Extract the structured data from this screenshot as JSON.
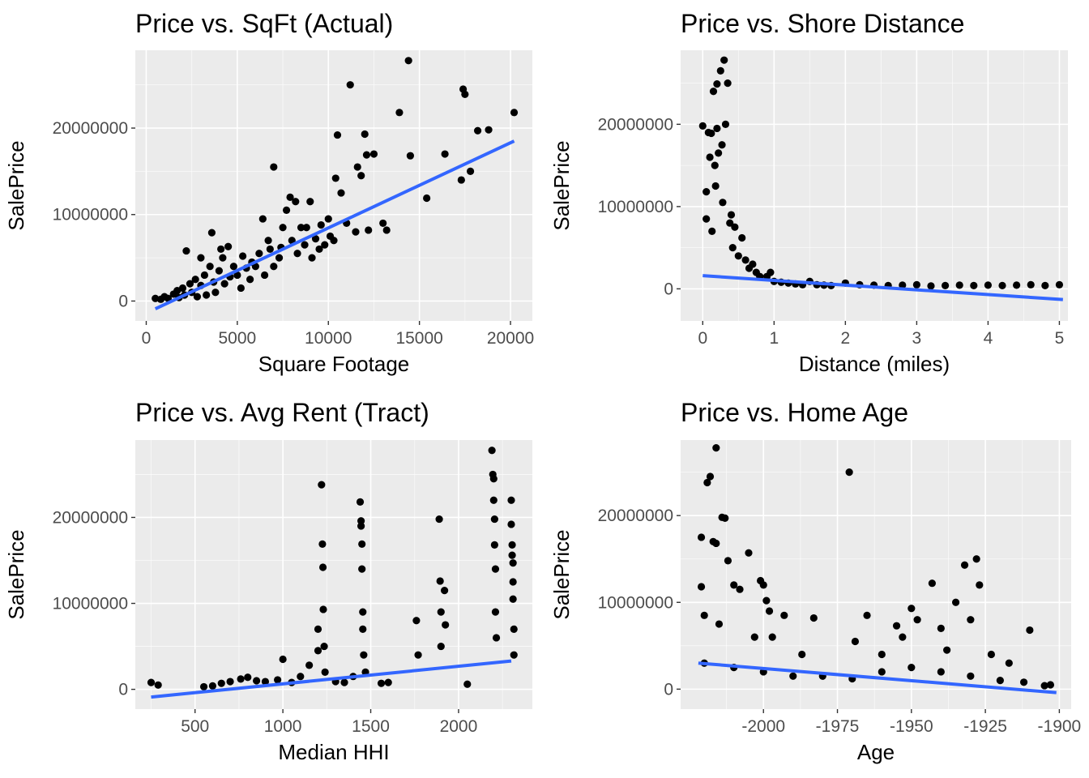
{
  "colors": {
    "panel_bg": "#ebebeb",
    "grid_major": "#ffffff",
    "point": "#000000",
    "smooth_line": "#3366ff",
    "tick_text": "#4d4d4d"
  },
  "chart_data": [
    {
      "type": "scatter",
      "title": "Price vs. SqFt (Actual)",
      "xlabel": "Square Footage",
      "ylabel": "SalePrice",
      "xlim": [
        -600,
        21200
      ],
      "ylim": [
        -2300000,
        29000000
      ],
      "xticks": [
        0,
        5000,
        10000,
        15000,
        20000
      ],
      "xtick_labels": [
        "0",
        "5000",
        "10000",
        "15000",
        "20000"
      ],
      "yticks": [
        0,
        10000000,
        20000000
      ],
      "ytick_labels": [
        "0",
        "10000000",
        "20000000"
      ],
      "grid": true,
      "trend_line": {
        "x": [
          500,
          20200
        ],
        "y": [
          -900000,
          18500000
        ]
      },
      "points": [
        [
          500,
          300000
        ],
        [
          800,
          200000
        ],
        [
          1000,
          500000
        ],
        [
          1200,
          300000
        ],
        [
          1500,
          800000
        ],
        [
          1700,
          1200000
        ],
        [
          1800,
          400000
        ],
        [
          2000,
          1500000
        ],
        [
          2100,
          700000
        ],
        [
          2200,
          5800000
        ],
        [
          2400,
          2000000
        ],
        [
          2500,
          1000000
        ],
        [
          2700,
          2500000
        ],
        [
          2800,
          500000
        ],
        [
          3000,
          1800000
        ],
        [
          3000,
          5000000
        ],
        [
          3200,
          3000000
        ],
        [
          3300,
          700000
        ],
        [
          3500,
          4000000
        ],
        [
          3600,
          7900000
        ],
        [
          3700,
          2200000
        ],
        [
          3800,
          1000000
        ],
        [
          4000,
          3500000
        ],
        [
          4100,
          6000000
        ],
        [
          4200,
          5000000
        ],
        [
          4300,
          2000000
        ],
        [
          4500,
          6300000
        ],
        [
          4600,
          2800000
        ],
        [
          4800,
          4000000
        ],
        [
          5000,
          3000000
        ],
        [
          5200,
          1500000
        ],
        [
          5300,
          5200000
        ],
        [
          5500,
          3800000
        ],
        [
          5700,
          2500000
        ],
        [
          5800,
          4500000
        ],
        [
          6000,
          4000000
        ],
        [
          6200,
          5500000
        ],
        [
          6400,
          9500000
        ],
        [
          6500,
          3000000
        ],
        [
          6700,
          7000000
        ],
        [
          6800,
          6000000
        ],
        [
          7000,
          15500000
        ],
        [
          7000,
          4000000
        ],
        [
          7300,
          5000000
        ],
        [
          7400,
          6200000
        ],
        [
          7500,
          8500000
        ],
        [
          7700,
          10500000
        ],
        [
          7900,
          12000000
        ],
        [
          8000,
          7000000
        ],
        [
          8200,
          11500000
        ],
        [
          8300,
          5500000
        ],
        [
          8500,
          8500000
        ],
        [
          8700,
          6500000
        ],
        [
          8800,
          8500000
        ],
        [
          9000,
          11500000
        ],
        [
          9100,
          5000000
        ],
        [
          9300,
          7200000
        ],
        [
          9500,
          6000000
        ],
        [
          9600,
          8800000
        ],
        [
          9800,
          6500000
        ],
        [
          10000,
          9500000
        ],
        [
          10100,
          7500000
        ],
        [
          10300,
          7000000
        ],
        [
          10400,
          14200000
        ],
        [
          10500,
          19200000
        ],
        [
          10700,
          12500000
        ],
        [
          11000,
          9000000
        ],
        [
          11200,
          25000000
        ],
        [
          11500,
          8000000
        ],
        [
          11600,
          15500000
        ],
        [
          11800,
          14500000
        ],
        [
          12000,
          19300000
        ],
        [
          12100,
          16900000
        ],
        [
          12200,
          8200000
        ],
        [
          12500,
          17000000
        ],
        [
          13000,
          9000000
        ],
        [
          13200,
          8200000
        ],
        [
          13900,
          21800000
        ],
        [
          14400,
          27800000
        ],
        [
          14500,
          16800000
        ],
        [
          15400,
          11900000
        ],
        [
          16400,
          17000000
        ],
        [
          17300,
          14000000
        ],
        [
          17400,
          24500000
        ],
        [
          17500,
          23900000
        ],
        [
          17800,
          15000000
        ],
        [
          18200,
          19700000
        ],
        [
          18800,
          19800000
        ],
        [
          20200,
          21800000
        ]
      ]
    },
    {
      "type": "scatter",
      "title": "Price vs. Shore Distance",
      "xlabel": "Distance (miles)",
      "ylabel": "SalePrice",
      "xlim": [
        -0.31,
        5.12
      ],
      "ylim": [
        -3900000,
        29000000
      ],
      "xticks": [
        0,
        1,
        2,
        3,
        4,
        5
      ],
      "xtick_labels": [
        "0",
        "1",
        "2",
        "3",
        "4",
        "5"
      ],
      "yticks": [
        0,
        10000000,
        20000000
      ],
      "ytick_labels": [
        "0",
        "10000000",
        "20000000"
      ],
      "grid": true,
      "trend_line": {
        "x": [
          0,
          5.05
        ],
        "y": [
          1600000,
          -1300000
        ]
      },
      "points": [
        [
          0,
          19800000
        ],
        [
          0.05,
          11800000
        ],
        [
          0.05,
          8500000
        ],
        [
          0.08,
          19000000
        ],
        [
          0.1,
          16000000
        ],
        [
          0.12,
          18900000
        ],
        [
          0.13,
          7000000
        ],
        [
          0.15,
          24000000
        ],
        [
          0.17,
          15000000
        ],
        [
          0.18,
          12500000
        ],
        [
          0.2,
          24900000
        ],
        [
          0.2,
          19500000
        ],
        [
          0.22,
          16500000
        ],
        [
          0.25,
          26500000
        ],
        [
          0.27,
          17500000
        ],
        [
          0.28,
          10500000
        ],
        [
          0.3,
          27800000
        ],
        [
          0.32,
          20000000
        ],
        [
          0.35,
          25000000
        ],
        [
          0.38,
          8000000
        ],
        [
          0.4,
          9000000
        ],
        [
          0.42,
          5000000
        ],
        [
          0.45,
          7500000
        ],
        [
          0.5,
          4000000
        ],
        [
          0.55,
          6200000
        ],
        [
          0.6,
          3500000
        ],
        [
          0.65,
          2500000
        ],
        [
          0.7,
          3000000
        ],
        [
          0.75,
          2000000
        ],
        [
          0.8,
          1500000
        ],
        [
          0.9,
          1500000
        ],
        [
          0.95,
          2000000
        ],
        [
          1.0,
          900000
        ],
        [
          1.1,
          800000
        ],
        [
          1.2,
          700000
        ],
        [
          1.3,
          600000
        ],
        [
          1.4,
          500000
        ],
        [
          1.5,
          900000
        ],
        [
          1.6,
          500000
        ],
        [
          1.7,
          450000
        ],
        [
          1.8,
          400000
        ],
        [
          2.0,
          700000
        ],
        [
          2.2,
          500000
        ],
        [
          2.4,
          450000
        ],
        [
          2.6,
          400000
        ],
        [
          2.8,
          450000
        ],
        [
          3.0,
          500000
        ],
        [
          3.2,
          350000
        ],
        [
          3.4,
          400000
        ],
        [
          3.6,
          450000
        ],
        [
          3.8,
          400000
        ],
        [
          4.0,
          450000
        ],
        [
          4.2,
          400000
        ],
        [
          4.4,
          450000
        ],
        [
          4.6,
          500000
        ],
        [
          4.8,
          400000
        ],
        [
          5.0,
          500000
        ]
      ]
    },
    {
      "type": "scatter",
      "title": "Price vs. Avg Rent (Tract)",
      "xlabel": "Median HHI",
      "ylabel": "SalePrice",
      "xlim": [
        160,
        2420
      ],
      "ylim": [
        -2300000,
        29000000
      ],
      "xticks": [
        500,
        1000,
        1500,
        2000
      ],
      "xtick_labels": [
        "500",
        "1000",
        "1500",
        "2000"
      ],
      "yticks": [
        0,
        10000000,
        20000000
      ],
      "ytick_labels": [
        "0",
        "10000000",
        "20000000"
      ],
      "grid": true,
      "trend_line": {
        "x": [
          250,
          2300
        ],
        "y": [
          -900000,
          3300000
        ]
      },
      "points": [
        [
          250,
          800000
        ],
        [
          290,
          500000
        ],
        [
          550,
          300000
        ],
        [
          600,
          400000
        ],
        [
          650,
          700000
        ],
        [
          700,
          900000
        ],
        [
          760,
          1200000
        ],
        [
          800,
          1400000
        ],
        [
          850,
          1000000
        ],
        [
          900,
          900000
        ],
        [
          970,
          1100000
        ],
        [
          1000,
          3500000
        ],
        [
          1050,
          800000
        ],
        [
          1100,
          1500000
        ],
        [
          1150,
          2800000
        ],
        [
          1200,
          4500000
        ],
        [
          1200,
          7000000
        ],
        [
          1220,
          23800000
        ],
        [
          1225,
          16900000
        ],
        [
          1228,
          14200000
        ],
        [
          1230,
          9300000
        ],
        [
          1235,
          5000000
        ],
        [
          1240,
          2000000
        ],
        [
          1300,
          900000
        ],
        [
          1350,
          800000
        ],
        [
          1400,
          1500000
        ],
        [
          1440,
          21800000
        ],
        [
          1445,
          19600000
        ],
        [
          1445,
          19000000
        ],
        [
          1450,
          16900000
        ],
        [
          1450,
          14000000
        ],
        [
          1455,
          9000000
        ],
        [
          1455,
          7000000
        ],
        [
          1460,
          4000000
        ],
        [
          1470,
          2000000
        ],
        [
          1560,
          700000
        ],
        [
          1600,
          800000
        ],
        [
          1760,
          8000000
        ],
        [
          1770,
          4000000
        ],
        [
          1890,
          19800000
        ],
        [
          1895,
          12600000
        ],
        [
          1900,
          9000000
        ],
        [
          1900,
          5000000
        ],
        [
          1920,
          11500000
        ],
        [
          1925,
          7500000
        ],
        [
          2050,
          600000
        ],
        [
          2190,
          27800000
        ],
        [
          2195,
          25000000
        ],
        [
          2200,
          24500000
        ],
        [
          2200,
          22000000
        ],
        [
          2205,
          19800000
        ],
        [
          2205,
          16800000
        ],
        [
          2210,
          14000000
        ],
        [
          2210,
          9000000
        ],
        [
          2215,
          6000000
        ],
        [
          2300,
          22000000
        ],
        [
          2300,
          19200000
        ],
        [
          2305,
          16800000
        ],
        [
          2305,
          15600000
        ],
        [
          2310,
          14700000
        ],
        [
          2310,
          12500000
        ],
        [
          2310,
          10500000
        ],
        [
          2315,
          7000000
        ],
        [
          2315,
          4000000
        ]
      ]
    },
    {
      "type": "scatter",
      "title": "Price vs. Home Age",
      "xlabel": "Age",
      "ylabel": "SalePrice",
      "xlim": [
        -2028,
        -1896
      ],
      "ylim": [
        -2300000,
        28700000
      ],
      "xticks": [
        -2000,
        -1975,
        -1950,
        -1925,
        -1900
      ],
      "xtick_labels": [
        "-2000",
        "-1975",
        "-1950",
        "-1925",
        "-1900"
      ],
      "yticks": [
        0,
        10000000,
        20000000
      ],
      "ytick_labels": [
        "0",
        "10000000",
        "20000000"
      ],
      "grid": true,
      "trend_line": {
        "x": [
          -2022,
          -1901
        ],
        "y": [
          3000000,
          -400000
        ]
      },
      "points": [
        [
          -2021,
          11800000
        ],
        [
          -2021,
          17500000
        ],
        [
          -2020,
          8500000
        ],
        [
          -2019,
          23800000
        ],
        [
          -2018,
          24500000
        ],
        [
          -2017,
          17000000
        ],
        [
          -2016,
          16800000
        ],
        [
          -2016,
          27800000
        ],
        [
          -2015,
          7500000
        ],
        [
          -2014,
          19800000
        ],
        [
          -2013,
          19700000
        ],
        [
          -2012,
          14800000
        ],
        [
          -2010,
          12000000
        ],
        [
          -2008,
          11500000
        ],
        [
          -2005,
          15700000
        ],
        [
          -2003,
          6000000
        ],
        [
          -2001,
          12500000
        ],
        [
          -2000,
          12000000
        ],
        [
          -1999,
          10200000
        ],
        [
          -1998,
          9000000
        ],
        [
          -1997,
          6000000
        ],
        [
          -1993,
          8500000
        ],
        [
          -1987,
          4000000
        ],
        [
          -1983,
          8200000
        ],
        [
          -1971,
          25000000
        ],
        [
          -1969,
          5500000
        ],
        [
          -1965,
          8500000
        ],
        [
          -1960,
          4000000
        ],
        [
          -1955,
          7300000
        ],
        [
          -1953,
          6000000
        ],
        [
          -1950,
          9300000
        ],
        [
          -1948,
          8000000
        ],
        [
          -1943,
          12200000
        ],
        [
          -1940,
          7000000
        ],
        [
          -1938,
          4500000
        ],
        [
          -1935,
          10000000
        ],
        [
          -1932,
          14300000
        ],
        [
          -1930,
          8000000
        ],
        [
          -1928,
          15000000
        ],
        [
          -1927,
          12000000
        ],
        [
          -1923,
          4000000
        ],
        [
          -1917,
          3000000
        ],
        [
          -1910,
          6800000
        ],
        [
          -1903,
          500000
        ],
        [
          -2020,
          3000000
        ],
        [
          -2010,
          2500000
        ],
        [
          -2000,
          2000000
        ],
        [
          -1990,
          1500000
        ],
        [
          -1980,
          1500000
        ],
        [
          -1970,
          1200000
        ],
        [
          -1960,
          2000000
        ],
        [
          -1950,
          2500000
        ],
        [
          -1940,
          2000000
        ],
        [
          -1930,
          1500000
        ],
        [
          -1920,
          1000000
        ],
        [
          -1912,
          800000
        ],
        [
          -1905,
          400000
        ]
      ]
    }
  ]
}
